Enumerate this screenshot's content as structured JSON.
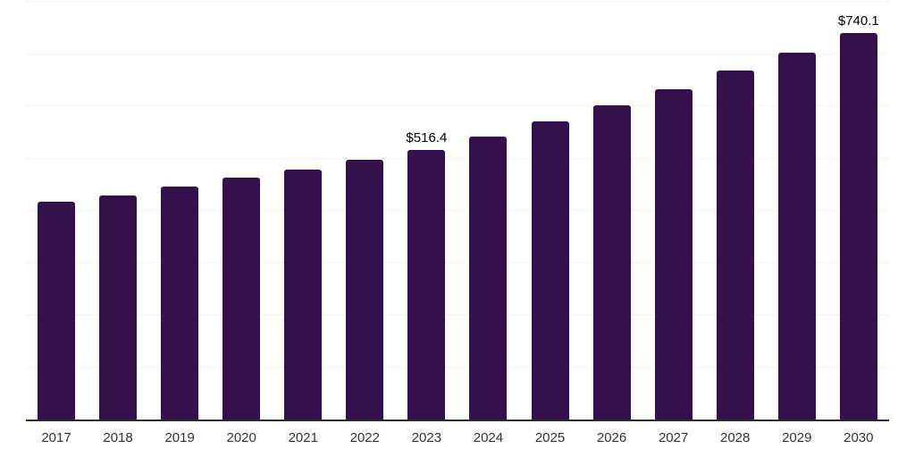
{
  "chart_data": {
    "type": "bar",
    "title": "",
    "xlabel": "",
    "ylabel": "",
    "categories": [
      "2017",
      "2018",
      "2019",
      "2020",
      "2021",
      "2022",
      "2023",
      "2024",
      "2025",
      "2026",
      "2027",
      "2028",
      "2029",
      "2030"
    ],
    "values": [
      417,
      429.5,
      446.5,
      462.5,
      479.5,
      498,
      516.4,
      542,
      571,
      601,
      632,
      668,
      703,
      740.1
    ],
    "data_labels": [
      "",
      "",
      "",
      "",
      "",
      "",
      "$516.4",
      "",
      "",
      "",
      "",
      "",
      "",
      "$740.1"
    ],
    "ylim": [
      0,
      800
    ],
    "gridline_values": [
      100,
      200,
      300,
      400,
      500,
      600,
      700,
      800
    ],
    "grid": "horizontal",
    "legend_position": "none",
    "colors": {
      "bar": "#34114c",
      "axis": "#2b2b2b",
      "gridline": "#f1f1f1",
      "tick_label": "#333333",
      "data_label": "#000000",
      "background": "#ffffff"
    }
  }
}
